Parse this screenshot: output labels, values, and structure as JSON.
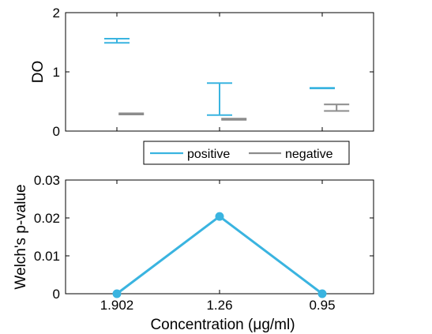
{
  "colors": {
    "positive": "#3ab4e0",
    "negative": "#8c8c8c",
    "axis": "#000000"
  },
  "chart_data": [
    {
      "type": "errorbar",
      "ylabel": "DO",
      "ylim": [
        0,
        2
      ],
      "yticks": [
        0,
        1,
        2
      ],
      "x_positions": [
        1,
        2,
        3
      ],
      "xlim": [
        0.5,
        3.5
      ],
      "show_x_tick_labels": false,
      "grid": false,
      "legend": {
        "placement": "bottom-center",
        "orientation": "horizontal"
      },
      "series": [
        {
          "name": "positive",
          "color_key": "positive",
          "x_offset": 0.0,
          "ranges": [
            [
              1.49,
              1.56
            ],
            [
              0.27,
              0.81
            ],
            [
              0.72,
              0.73
            ]
          ]
        },
        {
          "name": "negative",
          "color_key": "negative",
          "x_offset": 0.14,
          "ranges": [
            [
              0.28,
              0.3
            ],
            [
              0.19,
              0.21
            ],
            [
              0.34,
              0.45
            ]
          ]
        }
      ]
    },
    {
      "type": "line",
      "xlabel_prefix": "Concentration (",
      "xlabel_mu": "μ",
      "xlabel_suffix": "g/ml)",
      "ylabel": "Welch's p-value",
      "categories": [
        "1.902",
        "1.26",
        "0.95"
      ],
      "x_positions": [
        1,
        2,
        3
      ],
      "xlim": [
        0.5,
        3.5
      ],
      "ylim": [
        0,
        0.03
      ],
      "yticks": [
        "0",
        "0.01",
        "0.02",
        "0.03"
      ],
      "ytick_values": [
        0,
        0.01,
        0.02,
        0.03
      ],
      "values": [
        0.0,
        0.0204,
        0.0
      ],
      "color_key": "positive",
      "marker": "circle",
      "grid": false
    }
  ]
}
